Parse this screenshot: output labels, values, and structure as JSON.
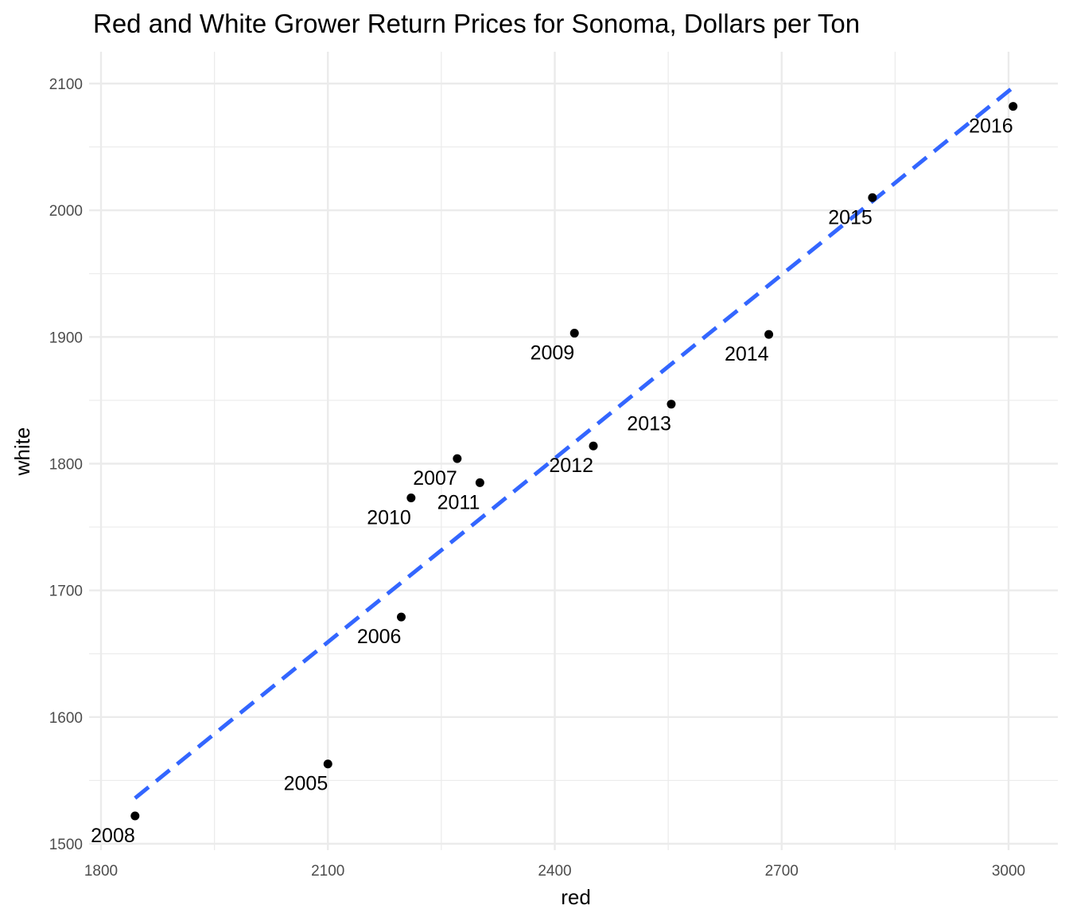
{
  "chart_data": {
    "type": "scatter",
    "title": "Red and White Grower Return Prices for Sonoma, Dollars per Ton",
    "xlabel": "red",
    "ylabel": "white",
    "xlim": [
      1800,
      3025
    ],
    "ylim": [
      1500,
      2125
    ],
    "x_ticks": [
      1800,
      2100,
      2400,
      2700,
      3000
    ],
    "y_ticks": [
      1500,
      1600,
      1700,
      1800,
      1900,
      2000,
      2100
    ],
    "grid": true,
    "points": [
      {
        "label": "2005",
        "x": 2100,
        "y": 1563
      },
      {
        "label": "2006",
        "x": 2197,
        "y": 1679
      },
      {
        "label": "2007",
        "x": 2271,
        "y": 1804
      },
      {
        "label": "2008",
        "x": 1845,
        "y": 1522
      },
      {
        "label": "2009",
        "x": 2426,
        "y": 1903
      },
      {
        "label": "2010",
        "x": 2210,
        "y": 1773
      },
      {
        "label": "2011",
        "x": 2301,
        "y": 1785
      },
      {
        "label": "2012",
        "x": 2451,
        "y": 1814
      },
      {
        "label": "2013",
        "x": 2554,
        "y": 1847
      },
      {
        "label": "2014",
        "x": 2683,
        "y": 1902
      },
      {
        "label": "2015",
        "x": 2820,
        "y": 2010
      },
      {
        "label": "2016",
        "x": 3006,
        "y": 2082
      }
    ],
    "trend_line": {
      "style": "dashed",
      "color": "#3366ff",
      "x": [
        1845,
        3006
      ],
      "y": [
        1536,
        2097
      ]
    },
    "point_color": "#000000",
    "grid_color": "#ebebeb"
  }
}
